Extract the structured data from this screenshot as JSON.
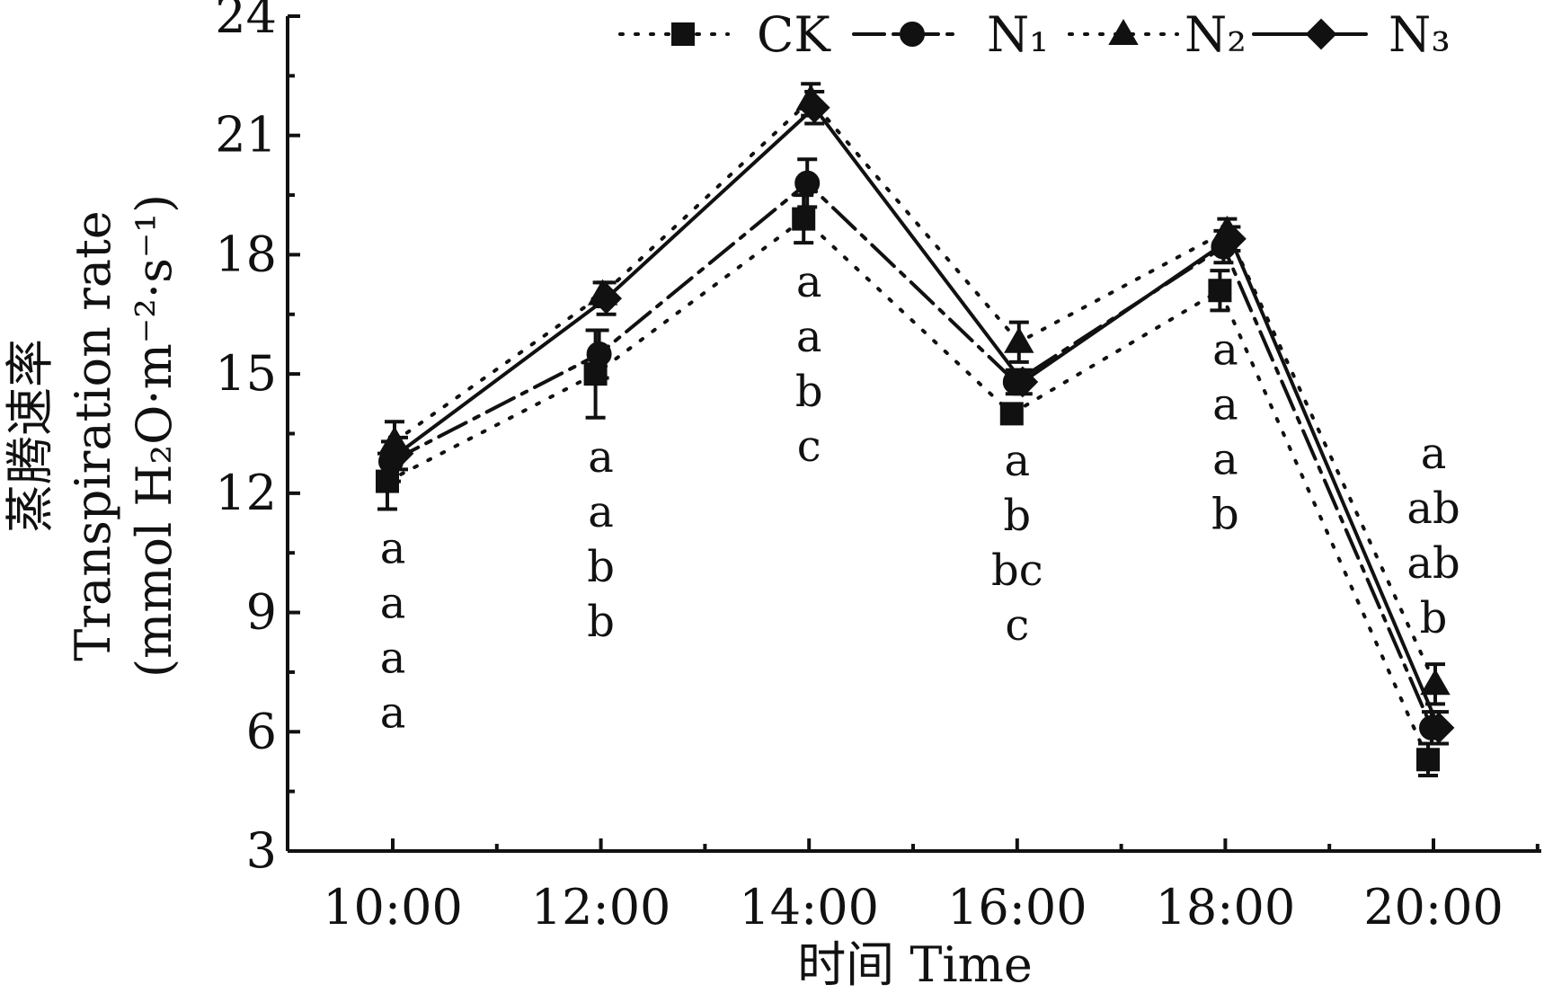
{
  "chart_data": {
    "type": "line",
    "x": [
      "10:00",
      "12:00",
      "14:00",
      "16:00",
      "18:00",
      "20:00"
    ],
    "xlabel": "时间 Time",
    "ylabel_cn": "蒸腾速率",
    "ylabel_en": "Transpiration rate",
    "ylabel_unit": "(mmol H₂O·m⁻²·s⁻¹)",
    "ylim": [
      3,
      24
    ],
    "yticks": [
      3,
      6,
      9,
      12,
      15,
      18,
      21,
      24
    ],
    "legend_position": "top",
    "series": [
      {
        "name": "CK",
        "marker": "square",
        "line": "dotted",
        "values": [
          12.3,
          15.0,
          18.9,
          14.0,
          17.1,
          5.3
        ],
        "errors": [
          0.7,
          1.1,
          0.6,
          0.2,
          0.5,
          0.4
        ]
      },
      {
        "name": "N₁",
        "marker": "circle",
        "line": "dashed",
        "values": [
          12.8,
          15.5,
          19.8,
          14.8,
          18.2,
          6.1
        ],
        "errors": [
          0.5,
          0.6,
          0.6,
          0.3,
          0.4,
          0.4
        ]
      },
      {
        "name": "N₂",
        "marker": "triangle",
        "line": "dotted",
        "values": [
          13.3,
          17.0,
          21.9,
          15.8,
          18.6,
          7.2
        ],
        "errors": [
          0.5,
          0.3,
          0.4,
          0.5,
          0.3,
          0.5
        ]
      },
      {
        "name": "N₃",
        "marker": "diamond",
        "line": "solid",
        "values": [
          13.0,
          16.9,
          21.7,
          14.8,
          18.4,
          6.1
        ],
        "errors": [
          0.4,
          0.4,
          0.4,
          0.3,
          0.3,
          0.4
        ]
      }
    ],
    "significance_letters": [
      [
        "a",
        "a",
        "a",
        "a"
      ],
      [
        "a",
        "a",
        "b",
        "b"
      ],
      [
        "a",
        "a",
        "b",
        "c"
      ],
      [
        "a",
        "b",
        "bc",
        "c"
      ],
      [
        "a",
        "a",
        "a",
        "b"
      ],
      [
        "a",
        "ab",
        "ab",
        "b"
      ]
    ]
  }
}
